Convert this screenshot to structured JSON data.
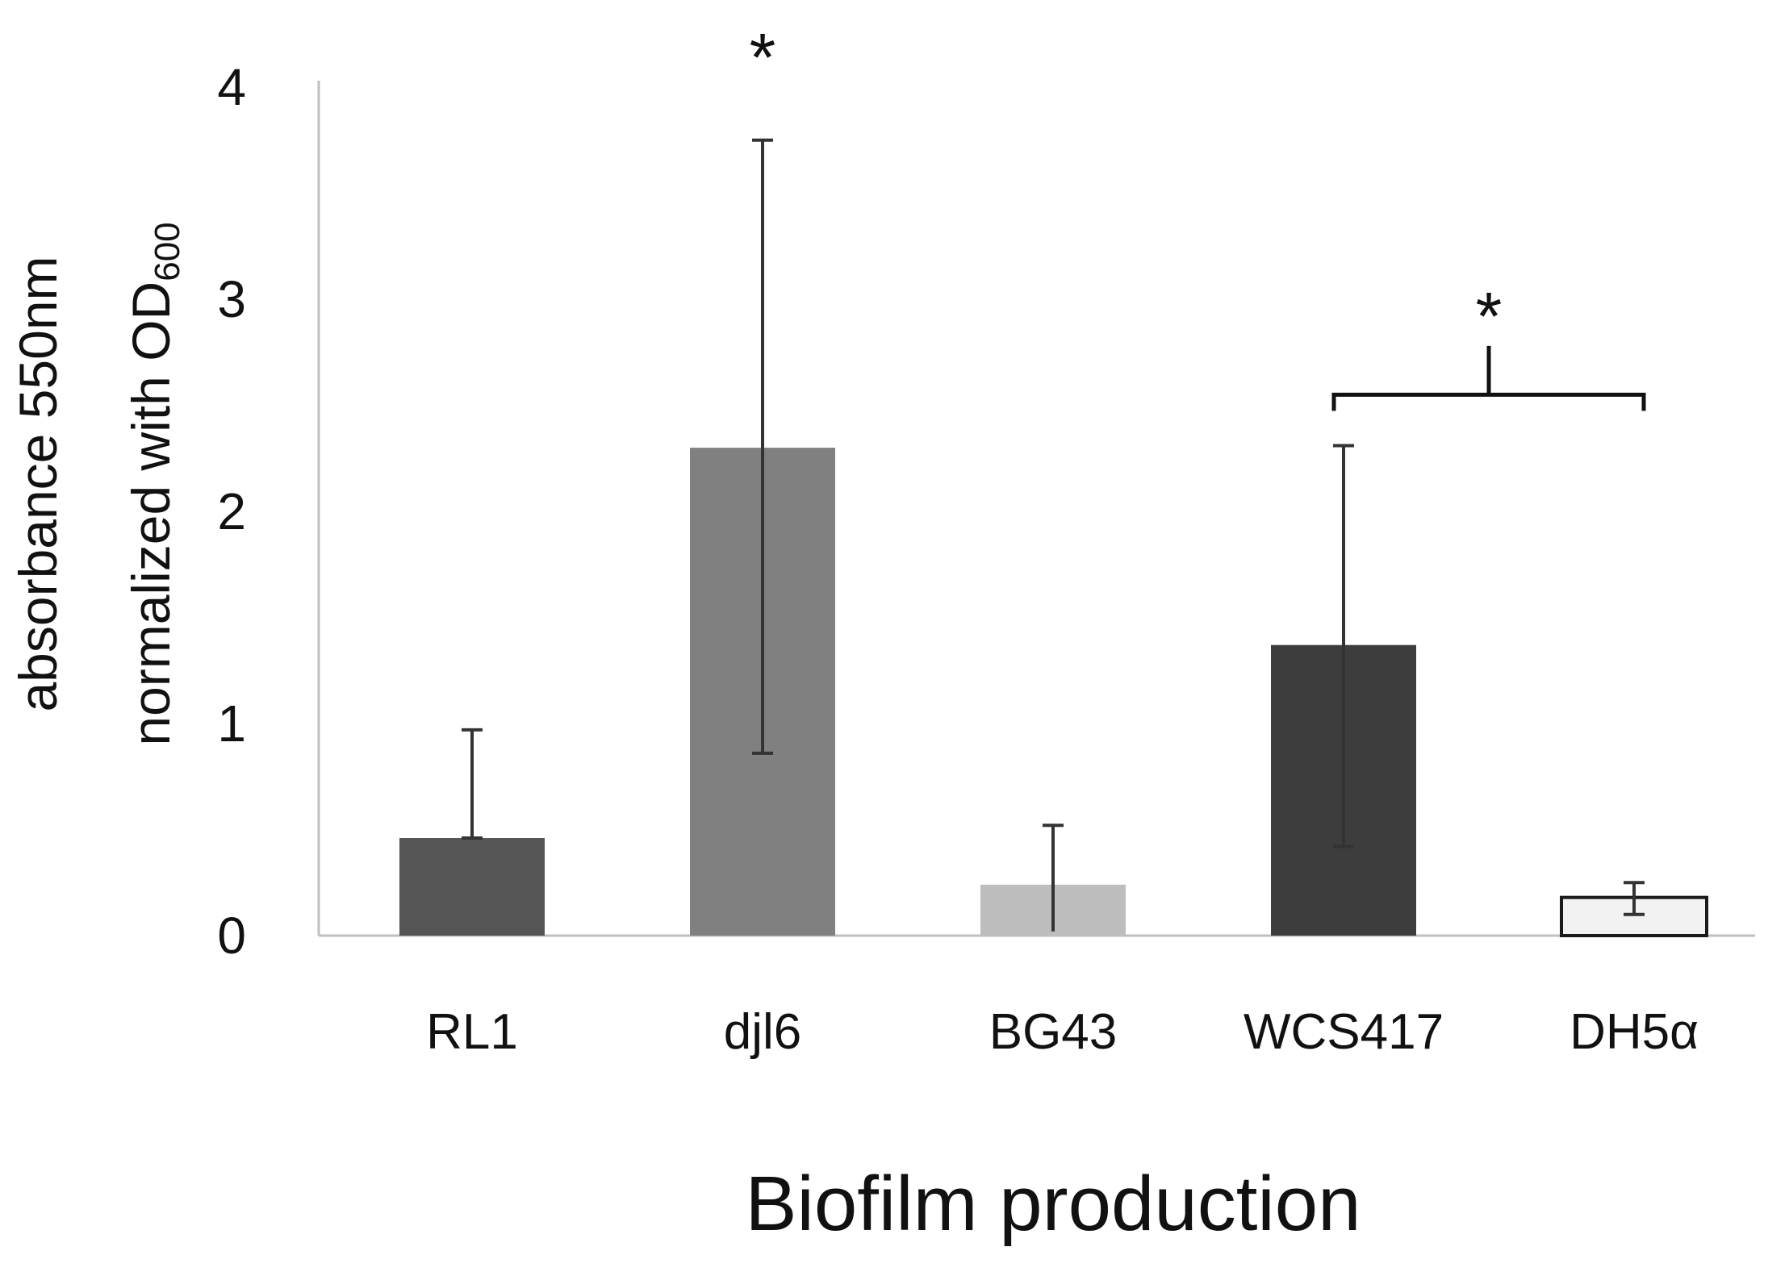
{
  "chart_data": {
    "type": "bar",
    "title": "",
    "xlabel": "Biofilm production",
    "ylabel_line1": "absorbance 550nm",
    "ylabel_line2_main": "normalized with OD",
    "ylabel_line2_sub": "600",
    "ylim": [
      0,
      4
    ],
    "yticks": [
      "0",
      "1",
      "2",
      "3",
      "4"
    ],
    "grid": false,
    "legend": "none",
    "categories": [
      "RL1",
      "djl6",
      "BG43",
      "WCS417",
      "DH5α"
    ],
    "values": [
      0.46,
      2.3,
      0.24,
      1.37,
      0.18
    ],
    "errors": [
      {
        "low": 0.46,
        "high": 0.97
      },
      {
        "low": 0.86,
        "high": 3.75
      },
      {
        "low": 0.02,
        "high": 0.52
      },
      {
        "low": 0.42,
        "high": 2.31
      },
      {
        "low": 0.1,
        "high": 0.25
      }
    ],
    "colors": [
      "#555555",
      "#808080",
      "#bdbdbd",
      "#3d3d3d",
      "#f2f2f2"
    ],
    "annotations": {
      "star_symbol": "*",
      "single_star_category": "djl6",
      "bracket_from": "WCS417",
      "bracket_to": "DH5α",
      "bracket_y": 2.55,
      "bracket_peak_y": 2.78
    }
  }
}
